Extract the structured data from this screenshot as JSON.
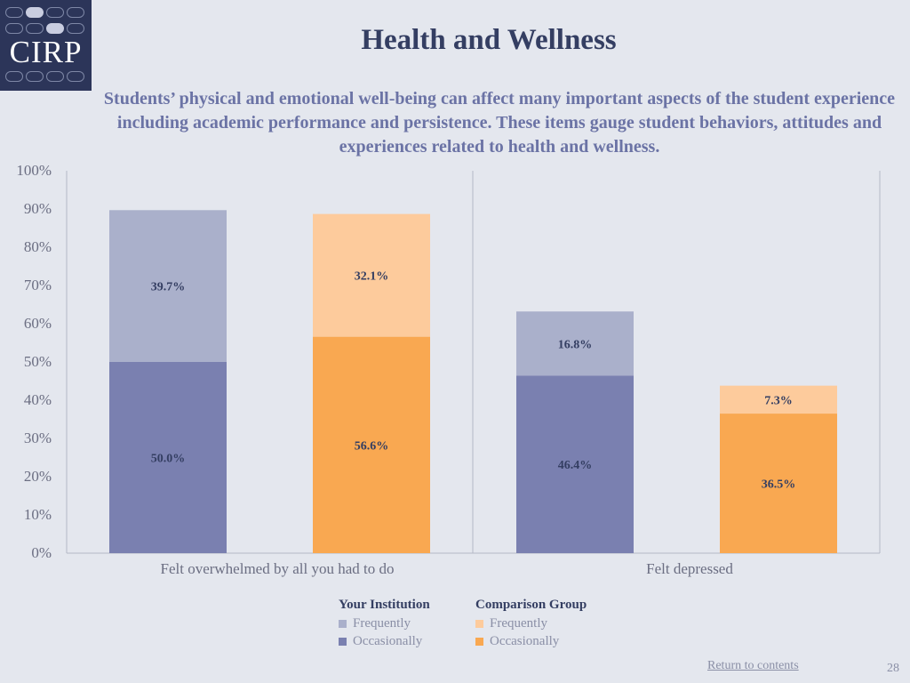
{
  "logo": {
    "text": "CIRP"
  },
  "page": {
    "title": "Health and Wellness",
    "subtitle": "Students’ physical and emotional well-being can affect many important aspects of the student experience including academic performance and persistence. These items gauge student behaviors, attitudes and experiences related to health and wellness."
  },
  "chart_data": {
    "type": "bar",
    "stacked": true,
    "ylim": [
      0,
      100
    ],
    "yticks": [
      "0%",
      "10%",
      "20%",
      "30%",
      "40%",
      "50%",
      "60%",
      "70%",
      "80%",
      "90%",
      "100%"
    ],
    "categories": [
      "Felt overwhelmed by all you had to do",
      "Felt depressed"
    ],
    "groups": [
      {
        "category": "Felt overwhelmed by all you had to do",
        "bars": [
          {
            "group": "Your Institution",
            "occasionally": 50.0,
            "frequently": 39.7,
            "occasionally_label": "50.0%",
            "frequently_label": "39.7%"
          },
          {
            "group": "Comparison Group",
            "occasionally": 56.6,
            "frequently": 32.1,
            "occasionally_label": "56.6%",
            "frequently_label": "32.1%"
          }
        ]
      },
      {
        "category": "Felt depressed",
        "bars": [
          {
            "group": "Your Institution",
            "occasionally": 46.4,
            "frequently": 16.8,
            "occasionally_label": "46.4%",
            "frequently_label": "16.8%"
          },
          {
            "group": "Comparison Group",
            "occasionally": 36.5,
            "frequently": 7.3,
            "occasionally_label": "36.5%",
            "frequently_label": "7.3%"
          }
        ]
      }
    ],
    "colors": {
      "Your Institution": {
        "occasionally": "#7a80b0",
        "frequently": "#aab0cb"
      },
      "Comparison Group": {
        "occasionally": "#f9a851",
        "frequently": "#fdcb9c"
      }
    },
    "legend": [
      {
        "title": "Your Institution",
        "items": [
          "Frequently",
          "Occasionally"
        ]
      },
      {
        "title": "Comparison Group",
        "items": [
          "Frequently",
          "Occasionally"
        ]
      }
    ],
    "legend_placement": "bottom-center"
  },
  "footer": {
    "link_text": "Return to contents",
    "page_number": "28"
  }
}
